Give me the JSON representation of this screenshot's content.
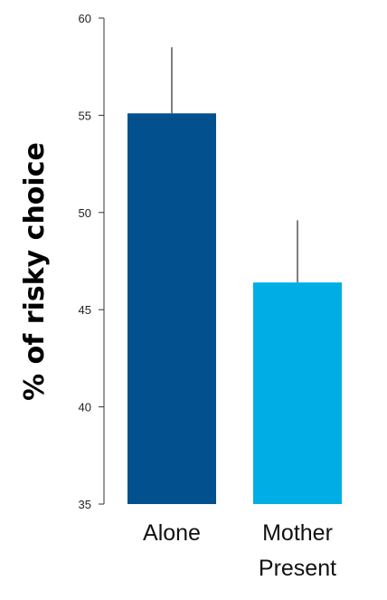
{
  "chart_data": {
    "type": "bar",
    "title": "",
    "xlabel": "",
    "ylabel": "% of risky choice",
    "ylim": [
      35,
      60
    ],
    "yticks": [
      35,
      40,
      45,
      50,
      55,
      60
    ],
    "grid": false,
    "categories": [
      {
        "lines": [
          "Alone"
        ]
      },
      {
        "lines": [
          "Mother",
          "Present"
        ]
      }
    ],
    "values": [
      55.1,
      46.4
    ],
    "error_upper": [
      58.5,
      49.6
    ],
    "colors": [
      "#03508f",
      "#00aee6"
    ]
  }
}
